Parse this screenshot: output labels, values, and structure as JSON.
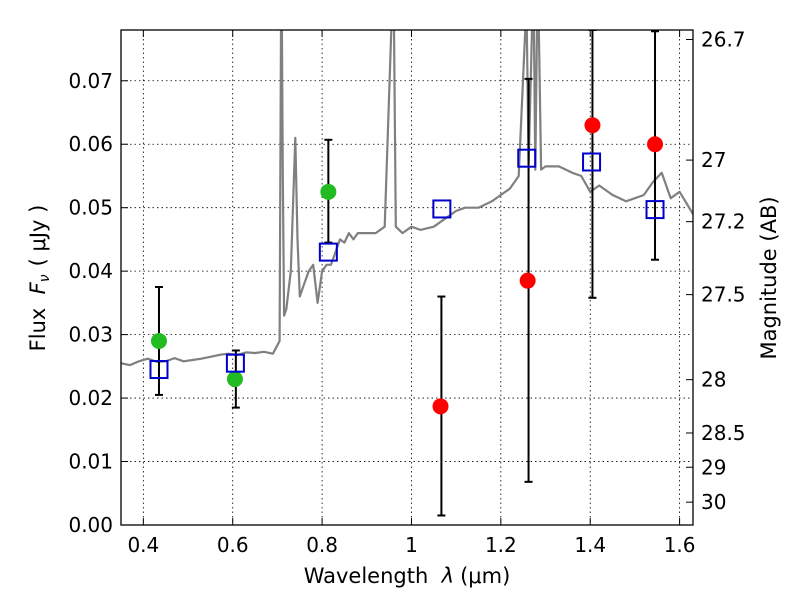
{
  "chart_data": {
    "type": "scatter",
    "xlabel_prefix": "Wavelength  ",
    "xlabel_symbol": "λ",
    "xlabel_unit": "(μm)",
    "ylabel_prefix": "Flux  ",
    "ylabel_symbol": "F",
    "ylabel_sub": "ν",
    "ylabel_unit": "( μJy )",
    "y2label": "Magnitude (AB)",
    "xlim": [
      0.35,
      1.63
    ],
    "ylim": [
      0.0,
      0.078
    ],
    "grid": true,
    "x_ticks": [
      0.4,
      0.6,
      0.8,
      1.0,
      1.2,
      1.4,
      1.6
    ],
    "x_tick_labels": [
      "0.4",
      "0.6",
      "0.8",
      "1",
      "1.2",
      "1.4",
      "1.6"
    ],
    "y_ticks": [
      0.0,
      0.01,
      0.02,
      0.03,
      0.04,
      0.05,
      0.06,
      0.07
    ],
    "y_tick_labels": [
      "0.00",
      "0.01",
      "0.02",
      "0.03",
      "0.04",
      "0.05",
      "0.06",
      "0.07"
    ],
    "y2_ticks": [
      {
        "label": "26.7",
        "flux": 0.0765
      },
      {
        "label": "27",
        "flux": 0.0575
      },
      {
        "label": "27.2",
        "flux": 0.0478
      },
      {
        "label": "27.5",
        "flux": 0.0363
      },
      {
        "label": "28",
        "flux": 0.0229
      },
      {
        "label": "28.5",
        "flux": 0.0145
      },
      {
        "label": "29",
        "flux": 0.0091
      },
      {
        "label": "30",
        "flux": 0.0036
      }
    ],
    "model_spectrum": {
      "color": "#808080",
      "x": [
        0.35,
        0.37,
        0.39,
        0.41,
        0.43,
        0.45,
        0.47,
        0.49,
        0.51,
        0.53,
        0.55,
        0.57,
        0.59,
        0.61,
        0.63,
        0.65,
        0.67,
        0.69,
        0.705,
        0.708,
        0.71,
        0.712,
        0.715,
        0.72,
        0.73,
        0.74,
        0.745,
        0.75,
        0.76,
        0.77,
        0.78,
        0.79,
        0.8,
        0.81,
        0.82,
        0.83,
        0.84,
        0.85,
        0.86,
        0.87,
        0.88,
        0.9,
        0.92,
        0.94,
        0.955,
        0.958,
        0.961,
        0.965,
        0.98,
        1.0,
        1.02,
        1.05,
        1.08,
        1.1,
        1.12,
        1.15,
        1.18,
        1.2,
        1.22,
        1.24,
        1.255,
        1.258,
        1.262,
        1.27,
        1.274,
        1.277,
        1.281,
        1.285,
        1.29,
        1.3,
        1.33,
        1.36,
        1.38,
        1.4,
        1.42,
        1.45,
        1.48,
        1.5,
        1.52,
        1.54,
        1.56,
        1.58,
        1.6,
        1.63
      ],
      "y": [
        0.0255,
        0.0252,
        0.0258,
        0.0262,
        0.0257,
        0.0258,
        0.0263,
        0.0258,
        0.026,
        0.0262,
        0.0265,
        0.0268,
        0.027,
        0.0268,
        0.0272,
        0.0271,
        0.0273,
        0.027,
        0.029,
        0.0785,
        0.0785,
        0.055,
        0.033,
        0.034,
        0.04,
        0.061,
        0.045,
        0.036,
        0.038,
        0.04,
        0.041,
        0.035,
        0.04,
        0.041,
        0.041,
        0.043,
        0.045,
        0.0445,
        0.046,
        0.045,
        0.046,
        0.046,
        0.046,
        0.047,
        0.0785,
        0.0785,
        0.0785,
        0.047,
        0.046,
        0.047,
        0.0465,
        0.047,
        0.0485,
        0.0495,
        0.05,
        0.05,
        0.051,
        0.052,
        0.053,
        0.055,
        0.0785,
        0.0785,
        0.057,
        0.0785,
        0.0785,
        0.056,
        0.0785,
        0.0785,
        0.056,
        0.0565,
        0.0565,
        0.0555,
        0.055,
        0.0525,
        0.0535,
        0.052,
        0.051,
        0.0515,
        0.052,
        0.054,
        0.0555,
        0.0515,
        0.0525,
        0.049
      ]
    },
    "series": [
      {
        "name": "",
        "marker": "circle",
        "color": "#22bb22",
        "points": [
          {
            "x": 0.435,
            "y": 0.029
          },
          {
            "x": 0.605,
            "y": 0.023
          },
          {
            "x": 0.814,
            "y": 0.0525
          }
        ]
      },
      {
        "name": "",
        "marker": "circle",
        "color": "#ff0000",
        "points": [
          {
            "x": 1.065,
            "y": 0.0187
          },
          {
            "x": 1.26,
            "y": 0.0385
          },
          {
            "x": 1.405,
            "y": 0.063
          },
          {
            "x": 1.545,
            "y": 0.06
          }
        ]
      },
      {
        "name": "",
        "marker": "square-open",
        "color": "#0000cc",
        "points": [
          {
            "x": 0.435,
            "y": 0.0245
          },
          {
            "x": 0.606,
            "y": 0.0255
          },
          {
            "x": 0.814,
            "y": 0.043
          },
          {
            "x": 1.068,
            "y": 0.0498
          },
          {
            "x": 1.258,
            "y": 0.0578
          },
          {
            "x": 1.403,
            "y": 0.0572
          },
          {
            "x": 1.545,
            "y": 0.0497
          }
        ]
      }
    ],
    "error_bars": [
      {
        "x": 0.435,
        "low": 0.0205,
        "high": 0.0375
      },
      {
        "x": 0.607,
        "low": 0.0185,
        "high": 0.0275
      },
      {
        "x": 0.814,
        "low": 0.0445,
        "high": 0.0607
      },
      {
        "x": 1.067,
        "low": 0.0015,
        "high": 0.036
      },
      {
        "x": 1.262,
        "low": 0.0068,
        "high": 0.0703
      },
      {
        "x": 1.405,
        "low": 0.0358,
        "high": 0.078
      },
      {
        "x": 1.545,
        "low": 0.0418,
        "high": 0.0778
      }
    ]
  }
}
